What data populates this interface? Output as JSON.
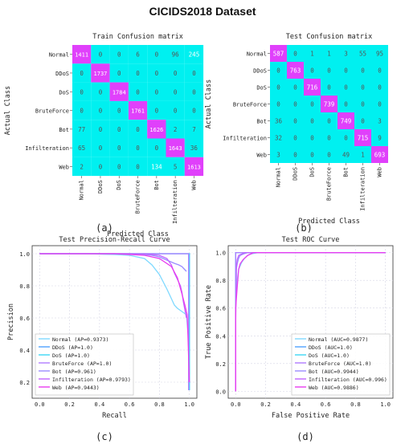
{
  "figure": {
    "title": "CICIDS2018 Dataset"
  },
  "chart_data": [
    {
      "type": "heatmap",
      "panel_label": "(a)",
      "title": "Train Confusion matrix",
      "xlabel": "Predicted Class",
      "ylabel": "Actual Class",
      "classes": [
        "Normal",
        "DDoS",
        "DoS",
        "BruteForce",
        "Bot",
        "Infilteration",
        "Web"
      ],
      "matrix": [
        [
          1411,
          0,
          0,
          6,
          0,
          96,
          245
        ],
        [
          0,
          1737,
          0,
          0,
          0,
          0,
          0
        ],
        [
          0,
          0,
          1784,
          0,
          0,
          0,
          0
        ],
        [
          0,
          0,
          0,
          1761,
          0,
          0,
          0
        ],
        [
          77,
          0,
          0,
          0,
          1626,
          2,
          7
        ],
        [
          65,
          0,
          0,
          0,
          0,
          1643,
          36
        ],
        [
          2,
          0,
          0,
          0,
          134,
          5,
          1613
        ]
      ],
      "colors": {
        "diagonal": "#e040fb",
        "off_diagonal": "#00f0f0",
        "text": "#ffffff",
        "text_off": "#555555"
      }
    },
    {
      "type": "heatmap",
      "panel_label": "(b)",
      "title": "Test Confusion matrix",
      "xlabel": "Predicted Class",
      "ylabel": "Actual Class",
      "classes": [
        "Normal",
        "DDoS",
        "DoS",
        "BruteForce",
        "Bot",
        "Infilteration",
        "Web"
      ],
      "matrix": [
        [
          587,
          0,
          1,
          1,
          3,
          55,
          95
        ],
        [
          0,
          763,
          0,
          0,
          0,
          0,
          0
        ],
        [
          0,
          0,
          716,
          0,
          0,
          0,
          0
        ],
        [
          0,
          0,
          0,
          739,
          0,
          0,
          0
        ],
        [
          36,
          0,
          0,
          0,
          749,
          0,
          3
        ],
        [
          32,
          0,
          0,
          0,
          0,
          715,
          9
        ],
        [
          3,
          0,
          0,
          0,
          49,
          1,
          693
        ]
      ],
      "colors": {
        "diagonal": "#e040fb",
        "off_diagonal": "#00f0f0",
        "text": "#ffffff",
        "text_off": "#555555"
      }
    },
    {
      "type": "line",
      "panel_label": "(c)",
      "title": "Test Precision-Recall Curve",
      "xlabel": "Recall",
      "ylabel": "Precision",
      "xlim": [
        -0.05,
        1.05
      ],
      "ylim": [
        0.1,
        1.05
      ],
      "xticks": [
        0.0,
        0.2,
        0.4,
        0.6,
        0.8,
        1.0
      ],
      "yticks": [
        0.2,
        0.4,
        0.6,
        0.8,
        1.0
      ],
      "grid": true,
      "legend_position": "lower-left",
      "series": [
        {
          "name": "Normal (AP=0.9373)",
          "color": "#7fd9ff",
          "x": [
            0,
            0.3,
            0.5,
            0.6,
            0.7,
            0.75,
            0.8,
            0.85,
            0.88,
            0.9,
            0.92,
            0.95,
            0.98,
            1.0
          ],
          "y": [
            1,
            1,
            0.995,
            0.99,
            0.97,
            0.93,
            0.87,
            0.78,
            0.72,
            0.68,
            0.66,
            0.64,
            0.62,
            0.4
          ]
        },
        {
          "name": "DDoS (AP=1.0)",
          "color": "#4fa3ff",
          "x": [
            0,
            0.99,
            1.0,
            1.0
          ],
          "y": [
            1,
            1,
            1,
            0.15
          ]
        },
        {
          "name": "DoS (AP=1.0)",
          "color": "#3dd7f5",
          "x": [
            0,
            0.98,
            1.0,
            1.0
          ],
          "y": [
            1,
            1,
            1,
            0.15
          ]
        },
        {
          "name": "BruteForce (AP=1.0)",
          "color": "#b07cff",
          "x": [
            0,
            0.97,
            0.995,
            0.995
          ],
          "y": [
            1,
            1,
            1,
            0.15
          ]
        },
        {
          "name": "Bot (AP=0.961)",
          "color": "#9b8cff",
          "x": [
            0,
            0.6,
            0.7,
            0.75,
            0.8,
            0.85,
            0.9,
            0.93,
            0.95,
            0.97,
            0.98
          ],
          "y": [
            1,
            1,
            0.995,
            0.99,
            0.98,
            0.96,
            0.94,
            0.93,
            0.92,
            0.9,
            0.89
          ]
        },
        {
          "name": "Infilteration (AP=0.9793)",
          "color": "#c064ff",
          "x": [
            0,
            0.7,
            0.8,
            0.85,
            0.88,
            0.9,
            0.92,
            0.94,
            0.95,
            0.96,
            0.97,
            0.98
          ],
          "y": [
            1,
            1,
            0.99,
            0.97,
            0.93,
            0.88,
            0.84,
            0.8,
            0.76,
            0.7,
            0.65,
            0.6
          ]
        },
        {
          "name": "Web (AP=0.9443)",
          "color": "#e83cf0",
          "x": [
            0,
            0.5,
            0.7,
            0.8,
            0.88,
            0.92,
            0.95,
            0.97,
            0.985,
            0.99,
            1.0
          ],
          "y": [
            1,
            1,
            0.99,
            0.97,
            0.92,
            0.85,
            0.75,
            0.68,
            0.62,
            0.5,
            0.2
          ]
        }
      ]
    },
    {
      "type": "line",
      "panel_label": "(d)",
      "title": "Test ROC Curve",
      "xlabel": "False Positive Rate",
      "ylabel": "True Positive Rate",
      "xlim": [
        -0.05,
        1.05
      ],
      "ylim": [
        -0.05,
        1.05
      ],
      "xticks": [
        0.0,
        0.2,
        0.4,
        0.6,
        0.8,
        1.0
      ],
      "yticks": [
        0.0,
        0.2,
        0.4,
        0.6,
        0.8,
        1.0
      ],
      "grid": true,
      "legend_position": "lower-right",
      "series": [
        {
          "name": "Normal (AUC=0.9877)",
          "color": "#7fd9ff",
          "x": [
            0,
            0.0,
            0.01,
            0.02,
            0.04,
            0.06,
            0.08,
            0.1,
            0.15,
            1.0
          ],
          "y": [
            0,
            0.7,
            0.8,
            0.88,
            0.93,
            0.96,
            0.98,
            0.99,
            1.0,
            1.0
          ]
        },
        {
          "name": "DDoS (AUC=1.0)",
          "color": "#4fa3ff",
          "x": [
            0,
            0,
            1.0
          ],
          "y": [
            0,
            1,
            1
          ]
        },
        {
          "name": "DoS (AUC=1.0)",
          "color": "#3dd7f5",
          "x": [
            0,
            0,
            1.0
          ],
          "y": [
            0,
            1,
            1
          ]
        },
        {
          "name": "BruteForce (AUC=1.0)",
          "color": "#b07cff",
          "x": [
            0,
            0,
            1.0
          ],
          "y": [
            0,
            1,
            1
          ]
        },
        {
          "name": "Bot (AUC=0.9944)",
          "color": "#9b8cff",
          "x": [
            0,
            0.0,
            0.01,
            0.02,
            0.03,
            0.05,
            0.08,
            1.0
          ],
          "y": [
            0,
            0.85,
            0.92,
            0.96,
            0.98,
            0.99,
            1.0,
            1.0
          ]
        },
        {
          "name": "Infilteration (AUC=0.996)",
          "color": "#c064ff",
          "x": [
            0,
            0.0,
            0.005,
            0.01,
            0.02,
            0.04,
            0.06,
            1.0
          ],
          "y": [
            0,
            0.5,
            0.9,
            0.95,
            0.98,
            0.99,
            1.0,
            1.0
          ]
        },
        {
          "name": "Web (AUC=0.9886)",
          "color": "#e83cf0",
          "x": [
            0,
            0.0,
            0.01,
            0.02,
            0.03,
            0.05,
            0.08,
            0.12,
            1.0
          ],
          "y": [
            0,
            0.6,
            0.75,
            0.88,
            0.92,
            0.95,
            0.98,
            1.0,
            1.0
          ]
        }
      ]
    }
  ]
}
